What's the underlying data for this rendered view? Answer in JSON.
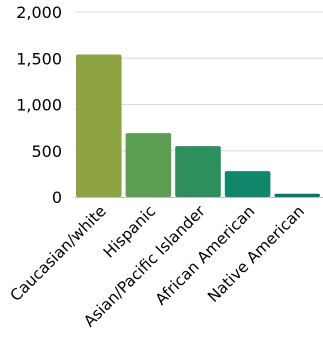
{
  "chart_data": {
    "type": "bar",
    "title": "",
    "xlabel": "",
    "ylabel": "",
    "ylim": [
      0,
      2000
    ],
    "yticks": [
      "2,000",
      "1,500",
      "1,000",
      "500",
      "0"
    ],
    "ytick_values": [
      2000,
      1500,
      1000,
      500,
      0
    ],
    "grid": true,
    "legend": "none",
    "categories": [
      "Caucasian/white",
      "Hispanic",
      "Asian/Pacific Islander",
      "African American",
      "Native American"
    ],
    "values": [
      1540,
      690,
      550,
      280,
      35
    ],
    "colors": [
      "#8ea442",
      "#5c9f52",
      "#2d8f5c",
      "#11866a",
      "#00796b"
    ]
  }
}
